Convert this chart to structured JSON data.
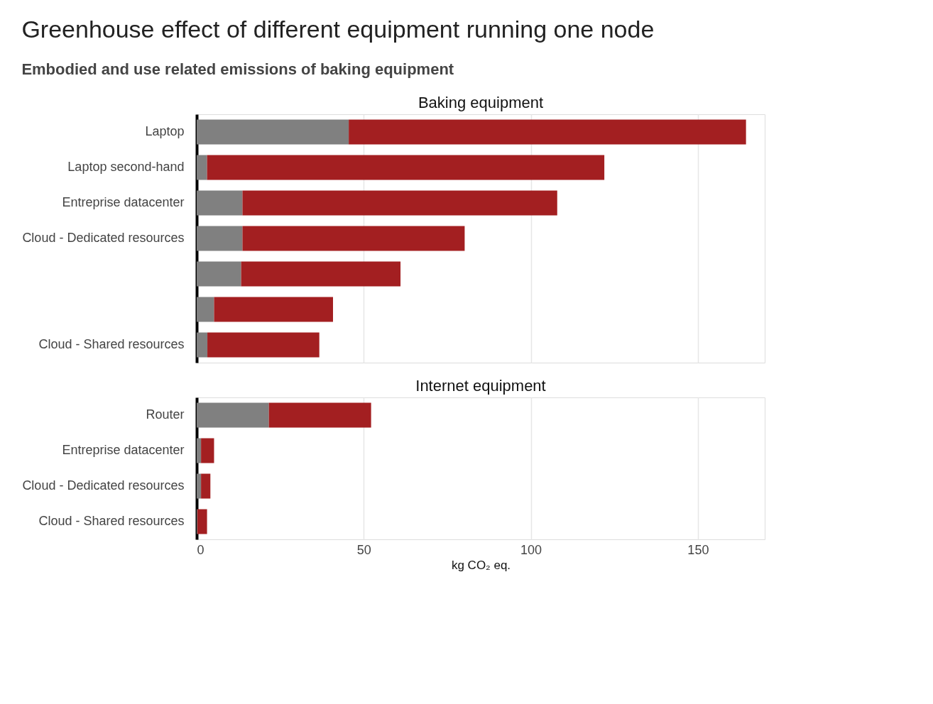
{
  "chart_data": [
    {
      "type": "bar",
      "orientation": "horizontal",
      "stacked": true,
      "title": "Greenhouse effect of different equipment running one node",
      "subtitle": "Embodied and use related emissions of baking equipment",
      "annotations": [
        "Baking equipment"
      ],
      "categories": [
        "Laptop",
        "Laptop second-hand",
        "Entreprise datacenter",
        "Cloud - Dedicated resources",
        null,
        null,
        "Cloud - Shared resources"
      ],
      "series": [
        {
          "color": "#808080",
          "values": [
            45.5,
            3.1,
            13.7,
            13.7,
            13.3,
            5.2,
            3.2
          ]
        },
        {
          "color": "#a31f21",
          "values": [
            118.9,
            118.9,
            94.2,
            66.5,
            47.7,
            35.6,
            33.5
          ]
        }
      ],
      "xlim": [
        0,
        170
      ],
      "xticks": [
        0,
        50,
        100,
        150
      ],
      "grid": "x",
      "tick_labels": "y"
    },
    {
      "type": "bar",
      "orientation": "horizontal",
      "stacked": true,
      "annotations": [
        "Internet equipment"
      ],
      "xlabel": "kg CO₂ eq.",
      "categories": [
        "Router",
        "Entreprise datacenter",
        "Cloud - Dedicated resources",
        "Cloud - Shared resources"
      ],
      "series": [
        {
          "color": "#808080",
          "values": [
            21.6,
            1.3,
            1.3,
            0.2
          ]
        },
        {
          "color": "#a31f21",
          "values": [
            30.6,
            3.9,
            2.8,
            2.9
          ]
        }
      ],
      "xlim": [
        0,
        170
      ],
      "xticks": [
        0,
        50,
        100,
        150
      ],
      "grid": "x"
    }
  ]
}
